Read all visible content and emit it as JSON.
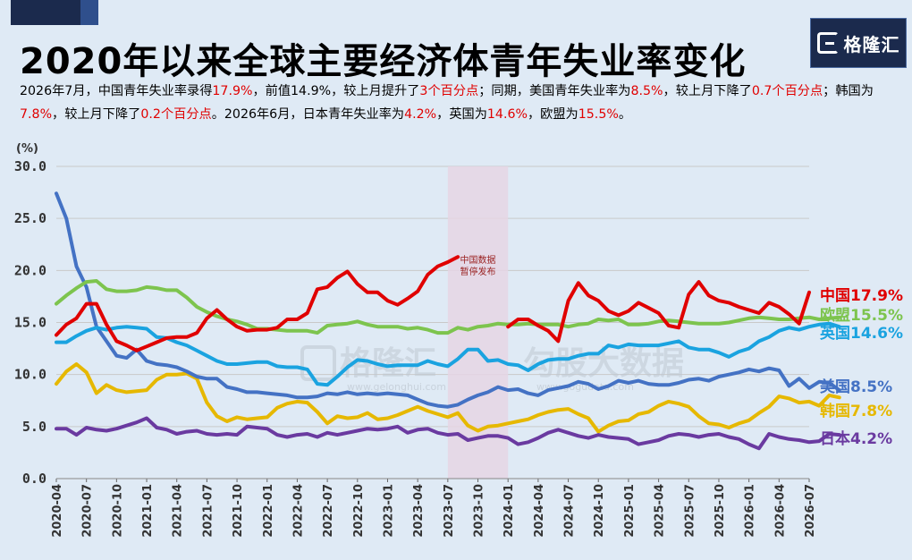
{
  "header": {
    "title": "2020年以来全球主要经济体青年失业率变化",
    "logo_text": "格隆汇",
    "desc": [
      {
        "t": "2026年7月，中国青年失业率录得",
        "r": false
      },
      {
        "t": "17.9%",
        "r": true
      },
      {
        "t": "，前值14.9%，较上月提升了",
        "r": false
      },
      {
        "t": "3个百分点",
        "r": true
      },
      {
        "t": "；同期，美国青年失业率为",
        "r": false
      },
      {
        "t": "8.5%",
        "r": true
      },
      {
        "t": "，较上月下降了",
        "r": false
      },
      {
        "t": "0.7个百分点",
        "r": true
      },
      {
        "t": "；韩国为",
        "r": false
      },
      {
        "t": "7.8%",
        "r": true
      },
      {
        "t": "，较上月下降了",
        "r": false
      },
      {
        "t": "0.2个百分点",
        "r": true
      },
      {
        "t": "。2026年6月，日本青年失业率为",
        "r": false
      },
      {
        "t": "4.2%",
        "r": true
      },
      {
        "t": "，英国为",
        "r": false
      },
      {
        "t": "14.6%",
        "r": true
      },
      {
        "t": "，欧盟为",
        "r": false
      },
      {
        "t": "15.5%",
        "r": true
      },
      {
        "t": "。",
        "r": false
      }
    ]
  },
  "watermark": {
    "brand": "格隆汇",
    "slogan": "勾股大数据",
    "url1": "www.gelonghui.com",
    "url2": "www.gogudata.com"
  },
  "colors": {
    "china": "#e00000",
    "eu": "#7dc44e",
    "uk": "#1aa3e0",
    "us": "#4472c4",
    "korea": "#e6b800",
    "japan": "#6a3aa0"
  },
  "chart_data": {
    "type": "line",
    "unit_label": "(%)",
    "ylim": [
      0,
      30
    ],
    "yticks": [
      "0.0",
      "5.0",
      "10.0",
      "15.0",
      "20.0",
      "25.0",
      "30.0"
    ],
    "grid": true,
    "start_month": "2020-04",
    "xtick_labels": [
      "2020-04",
      "2020-07",
      "2020-10",
      "2021-01",
      "2021-04",
      "2021-07",
      "2021-10",
      "2022-01",
      "2022-04",
      "2022-07",
      "2022-10",
      "2023-01",
      "2023-04",
      "2023-07",
      "2023-10",
      "2024-01",
      "2024-04",
      "2024-07",
      "2024-10",
      "2025-01",
      "2025-04",
      "2025-07",
      "2025-10",
      "2026-01",
      "2026-04",
      "2026-07"
    ],
    "shaded_range": {
      "from": "2023-07",
      "to": "2023-12",
      "label": [
        "中国数据",
        "暂停发布"
      ]
    },
    "series": [
      {
        "key": "china",
        "name": "中国",
        "end_label": "中国17.9%",
        "segments": [
          {
            "start": "2020-04",
            "values": [
              13.8,
              14.8,
              15.4,
              16.8,
              16.8,
              14.8,
              13.2,
              12.8,
              12.3,
              12.7,
              13.1,
              13.5,
              13.6,
              13.6,
              14.0,
              15.4,
              16.2,
              15.3,
              14.6,
              14.2,
              14.3,
              14.3,
              14.5,
              15.3,
              15.3,
              15.9,
              18.2,
              18.4,
              19.3,
              19.9,
              18.7,
              17.9,
              17.9,
              17.1,
              16.7,
              17.3,
              18.0,
              19.6,
              20.4,
              20.8,
              21.3
            ]
          },
          {
            "start": "2024-01",
            "values": [
              14.6,
              15.3,
              15.3,
              14.7,
              14.2,
              13.2,
              17.1,
              18.8,
              17.6,
              17.1,
              16.1,
              15.7,
              16.1,
              16.9,
              16.4,
              15.9,
              14.7,
              14.5,
              17.7,
              18.9,
              17.6,
              17.1,
              16.9,
              16.5,
              16.2,
              15.9,
              16.9,
              16.5,
              15.8,
              14.9,
              17.9
            ]
          }
        ]
      },
      {
        "key": "eu",
        "name": "欧盟",
        "end_label": "欧盟15.5%",
        "segments": [
          {
            "start": "2020-04",
            "values": [
              16.8,
              17.6,
              18.3,
              18.9,
              19.0,
              18.2,
              18.0,
              18.0,
              18.1,
              18.4,
              18.3,
              18.1,
              18.1,
              17.4,
              16.5,
              16.0,
              15.6,
              15.3,
              15.1,
              14.8,
              14.4,
              14.4,
              14.3,
              14.2,
              14.2,
              14.2,
              14.0,
              14.7,
              14.8,
              14.9,
              15.1,
              14.8,
              14.6,
              14.6,
              14.6,
              14.4,
              14.5,
              14.3,
              14.0,
              14.0,
              14.5,
              14.3,
              14.6,
              14.7,
              14.9,
              14.8,
              14.8,
              14.9,
              14.8,
              14.8,
              14.8,
              14.6,
              14.8,
              14.9,
              15.3,
              15.2,
              15.3,
              14.8,
              14.8,
              14.9,
              15.1,
              15.2,
              15.1,
              15.0,
              14.9,
              14.9,
              14.9,
              15.0,
              15.2,
              15.4,
              15.5,
              15.4,
              15.3,
              15.3,
              15.4,
              15.5,
              15.3,
              15.4,
              15.5
            ]
          }
        ]
      },
      {
        "key": "uk",
        "name": "英国",
        "end_label": "英国14.6%",
        "segments": [
          {
            "start": "2020-04",
            "values": [
              13.1,
              13.1,
              13.7,
              14.2,
              14.5,
              14.3,
              14.5,
              14.6,
              14.5,
              14.4,
              13.6,
              13.5,
              13.1,
              12.8,
              12.3,
              11.8,
              11.3,
              11.0,
              11.0,
              11.1,
              11.2,
              11.2,
              10.8,
              10.7,
              10.7,
              10.5,
              9.1,
              9.0,
              9.8,
              10.7,
              11.4,
              11.3,
              11.0,
              10.8,
              10.9,
              10.9,
              10.9,
              11.3,
              11.0,
              10.8,
              11.5,
              12.4,
              12.4,
              11.3,
              11.4,
              11.0,
              10.9,
              10.4,
              11.0,
              11.4,
              11.5,
              11.5,
              11.8,
              12.0,
              12.0,
              12.8,
              12.6,
              12.9,
              12.8,
              12.8,
              12.8,
              13.0,
              13.2,
              12.6,
              12.4,
              12.4,
              12.1,
              11.7,
              12.2,
              12.5,
              13.2,
              13.6,
              14.2,
              14.5,
              14.3,
              14.6,
              14.8,
              14.9,
              14.6
            ]
          }
        ]
      },
      {
        "key": "us",
        "name": "美国",
        "end_label": "美国8.5%",
        "segments": [
          {
            "start": "2020-04",
            "values": [
              27.4,
              25.0,
              20.4,
              18.4,
              14.6,
              13.2,
              11.8,
              11.6,
              12.4,
              11.3,
              11.0,
              10.9,
              10.7,
              10.3,
              9.8,
              9.6,
              9.6,
              8.8,
              8.6,
              8.3,
              8.3,
              8.2,
              8.1,
              8.0,
              7.8,
              7.8,
              7.9,
              8.2,
              8.1,
              8.3,
              8.1,
              8.2,
              8.1,
              8.2,
              8.1,
              8.0,
              7.6,
              7.2,
              7.0,
              6.9,
              7.1,
              7.6,
              8.0,
              8.3,
              8.8,
              8.5,
              8.6,
              8.2,
              8.0,
              8.5,
              8.7,
              8.9,
              9.3,
              9.1,
              8.6,
              8.9,
              9.4,
              9.2,
              9.4,
              9.1,
              9.0,
              9.0,
              9.2,
              9.5,
              9.6,
              9.4,
              9.8,
              10.0,
              10.2,
              10.5,
              10.3,
              10.6,
              10.4,
              8.9,
              9.6,
              8.7,
              9.3,
              9.2,
              8.5
            ]
          }
        ]
      },
      {
        "key": "korea",
        "name": "韩国",
        "end_label": "韩国7.8%",
        "segments": [
          {
            "start": "2020-04",
            "values": [
              9.1,
              10.3,
              11.0,
              10.2,
              8.2,
              9.0,
              8.5,
              8.3,
              8.4,
              8.5,
              9.5,
              10.0,
              10.0,
              10.1,
              9.6,
              7.3,
              6.0,
              5.5,
              5.9,
              5.7,
              5.8,
              5.9,
              6.8,
              7.2,
              7.4,
              7.3,
              6.4,
              5.3,
              6.0,
              5.8,
              5.9,
              6.3,
              5.7,
              5.8,
              6.1,
              6.5,
              6.9,
              6.5,
              6.2,
              5.9,
              6.3,
              5.1,
              4.6,
              5.0,
              5.1,
              5.3,
              5.5,
              5.7,
              6.1,
              6.4,
              6.6,
              6.7,
              6.2,
              5.8,
              4.5,
              5.1,
              5.5,
              5.6,
              6.2,
              6.4,
              7.0,
              7.4,
              7.2,
              6.9,
              6.0,
              5.3,
              5.2,
              4.9,
              5.3,
              5.6,
              6.3,
              6.9,
              7.9,
              7.7,
              7.3,
              7.4,
              7.0,
              8.0,
              7.8
            ]
          }
        ]
      },
      {
        "key": "japan",
        "name": "日本",
        "end_label": "日本4.2%",
        "segments": [
          {
            "start": "2020-04",
            "values": [
              4.8,
              4.8,
              4.2,
              4.9,
              4.7,
              4.6,
              4.8,
              5.1,
              5.4,
              5.8,
              4.9,
              4.7,
              4.3,
              4.5,
              4.6,
              4.3,
              4.2,
              4.3,
              4.2,
              5.0,
              4.9,
              4.8,
              4.2,
              4.0,
              4.2,
              4.3,
              4.0,
              4.4,
              4.2,
              4.4,
              4.6,
              4.8,
              4.7,
              4.8,
              5.0,
              4.4,
              4.7,
              4.8,
              4.4,
              4.2,
              4.3,
              3.7,
              3.9,
              4.1,
              4.1,
              3.9,
              3.3,
              3.5,
              3.9,
              4.4,
              4.7,
              4.4,
              4.1,
              3.9,
              4.2,
              4.0,
              3.9,
              3.8,
              3.3,
              3.5,
              3.7,
              4.1,
              4.3,
              4.2,
              4.0,
              4.2,
              4.3,
              4.0,
              3.8,
              3.3,
              2.9,
              4.3,
              4.0,
              3.8,
              3.7,
              3.5,
              3.6,
              4.3,
              4.2
            ]
          }
        ]
      }
    ]
  }
}
